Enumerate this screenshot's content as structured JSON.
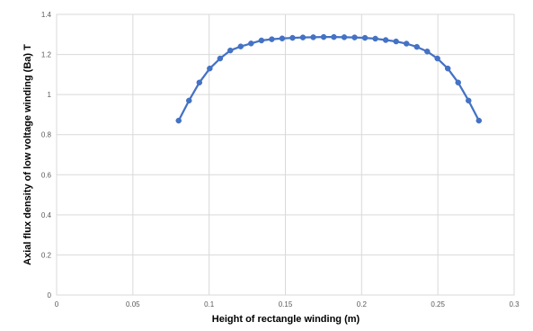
{
  "chart_data": {
    "type": "line",
    "title": "",
    "xlabel": "Height of rectangle winding  (m)",
    "ylabel": "Axial flux density of low voltage winding  (Ba)  T",
    "xlim": [
      0,
      0.3
    ],
    "ylim": [
      0,
      1.4
    ],
    "x_ticks": [
      0,
      0.05,
      0.1,
      0.15,
      0.2,
      0.25,
      0.3
    ],
    "x_tick_labels": [
      "0",
      "0.05",
      "0.1",
      "0.15",
      "0.2",
      "0.25",
      "0.3"
    ],
    "y_ticks": [
      0,
      0.2,
      0.4,
      0.6,
      0.8,
      1,
      1.2,
      1.4
    ],
    "y_tick_labels": [
      "0",
      "0.2",
      "0.4",
      "0.6",
      "0.8",
      "1",
      "1.2",
      "1.4"
    ],
    "grid": true,
    "legend": "none",
    "series": [
      {
        "color": "#4472C4",
        "marker": "circle",
        "x": [
          0.08,
          0.0868,
          0.0936,
          0.1004,
          0.1072,
          0.1139,
          0.1207,
          0.1275,
          0.1343,
          0.1411,
          0.1479,
          0.1547,
          0.1615,
          0.1683,
          0.1751,
          0.1818,
          0.1886,
          0.1954,
          0.2022,
          0.209,
          0.2158,
          0.2226,
          0.2294,
          0.2362,
          0.243,
          0.2497,
          0.2565,
          0.2633,
          0.2701,
          0.2769
        ],
        "values": [
          0.87,
          0.97,
          1.06,
          1.13,
          1.18,
          1.22,
          1.24,
          1.255,
          1.27,
          1.276,
          1.28,
          1.283,
          1.285,
          1.286,
          1.287,
          1.287,
          1.286,
          1.285,
          1.283,
          1.279,
          1.272,
          1.265,
          1.254,
          1.238,
          1.215,
          1.18,
          1.13,
          1.06,
          0.97,
          0.87
        ]
      }
    ]
  }
}
